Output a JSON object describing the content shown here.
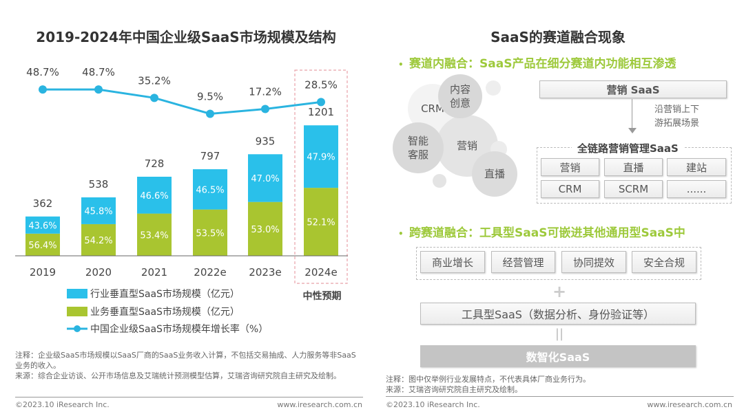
{
  "left": {
    "title": "2019-2024年中国企业级SaaS市场规模及结构",
    "forecast_label": "中性预期",
    "note": "注释：企业级SaaS市场规模以SaaS厂商的SaaS业务收入计算，不包括交易抽成、人力服务等非SaaS业务的收入。",
    "source": "来源：综合企业访谈、公开市场信息及艾瑞统计预测模型估算，艾瑞咨询研究院自主研究及绘制。",
    "copyright": "©2023.10 iResearch Inc.",
    "website": "www.iresearch.com.cn"
  },
  "chart_data": {
    "type": "bar",
    "stacked": true,
    "title": "2019-2024年中国企业级SaaS市场规模及结构",
    "categories": [
      "2019",
      "2020",
      "2021",
      "2022e",
      "2023e",
      "2024e"
    ],
    "totals": [
      362,
      538,
      728,
      797,
      935,
      1201
    ],
    "totals_labels": [
      "362",
      "538",
      "728",
      "797",
      "935",
      "1201"
    ],
    "series": [
      {
        "name": "业务垂直型SaaS市场规模（亿元）",
        "color": "#a9c530",
        "share_labels": [
          "56.4%",
          "54.2%",
          "53.4%",
          "53.5%",
          "53.0%",
          "52.1%"
        ],
        "share": [
          56.4,
          54.2,
          53.4,
          53.5,
          53.0,
          52.1
        ]
      },
      {
        "name": "行业垂直型SaaS市场规模（亿元）",
        "color": "#2ac0ea",
        "share_labels": [
          "43.6%",
          "45.8%",
          "46.6%",
          "46.5%",
          "47.0%",
          "47.9%"
        ],
        "share": [
          43.6,
          45.8,
          46.6,
          46.5,
          47.0,
          47.9
        ]
      },
      {
        "name": "中国企业级SaaS市场规模年增长率（%）",
        "type": "line",
        "color": "#2ab4e0",
        "values": [
          48.7,
          48.7,
          35.2,
          9.5,
          17.2,
          28.5
        ],
        "labels": [
          "48.7%",
          "48.7%",
          "35.2%",
          "9.5%",
          "17.2%",
          "28.5%"
        ]
      }
    ],
    "legend": [
      "行业垂直型SaaS市场规模（亿元）",
      "业务垂直型SaaS市场规模（亿元）",
      "中国企业级SaaS市场规模年增长率（%）"
    ],
    "legend_position": "bottom",
    "highlight": "2024e",
    "grid": false
  },
  "right": {
    "title": "SaaS的赛道融合现象",
    "sub1": "赛道内融合：SaaS产品在细分赛道内功能相互渗透",
    "bubbles": [
      "CRM",
      "内容创意",
      "营销",
      "智能客服",
      "直播"
    ],
    "marketing_saas": "营销 SaaS",
    "arrow_text1": "沿营销上下",
    "arrow_text2": "游拓展场景",
    "full_chain": "全链路营销管理SaaS",
    "chain_items": [
      "营销",
      "直播",
      "建站",
      "CRM",
      "SCRM",
      "......"
    ],
    "sub2": "跨赛道融合：工具型SaaS可嵌进其他通用型SaaS中",
    "general_items": [
      "商业增长",
      "经营管理",
      "协同提效",
      "安全合规"
    ],
    "plus": "+",
    "tool_saas": "工具型SaaS（数据分析、身份验证等）",
    "equals": "||",
    "digital_saas": "数智化SaaS",
    "note": "注释：图中仅举例行业发展特点，不代表具体厂商业务行为。",
    "source": "来源：艾瑞咨询研究院自主研究及绘制。",
    "copyright": "©2023.10 iResearch Inc.",
    "website": "www.iresearch.com.cn"
  }
}
